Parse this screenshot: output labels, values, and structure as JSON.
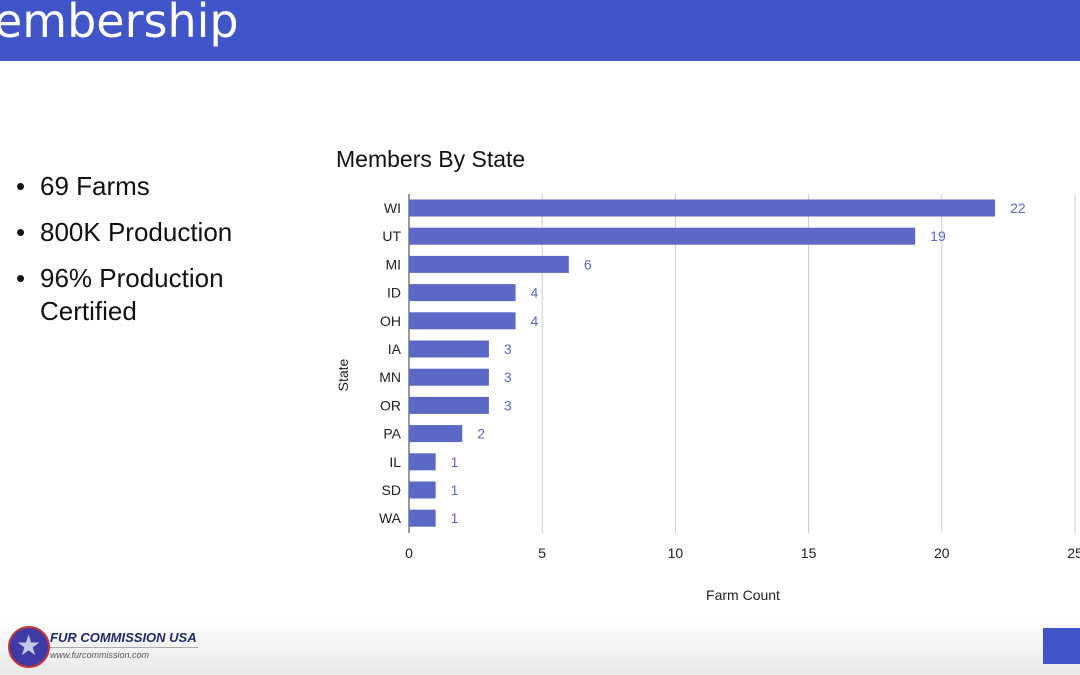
{
  "header": {
    "title": "embership"
  },
  "bullets": [
    "69 Farms",
    "800K Production",
    "96% Production Certified"
  ],
  "footer": {
    "org": "FUR COMMISSION USA",
    "url": "www.furcommission.com"
  },
  "chart_data": {
    "type": "bar",
    "orientation": "horizontal",
    "title": "Members By State",
    "xlabel": "Farm Count",
    "ylabel": "State",
    "categories": [
      "WI",
      "UT",
      "MI",
      "ID",
      "OH",
      "IA",
      "MN",
      "OR",
      "PA",
      "IL",
      "SD",
      "WA"
    ],
    "values": [
      22,
      19,
      6,
      4,
      4,
      3,
      3,
      3,
      2,
      1,
      1,
      1
    ],
    "xlim": [
      0,
      25
    ],
    "xticks": [
      0,
      5,
      10,
      15,
      20,
      25
    ],
    "grid": true,
    "color": "#5c68c6",
    "label_color": "#5c68c6"
  }
}
